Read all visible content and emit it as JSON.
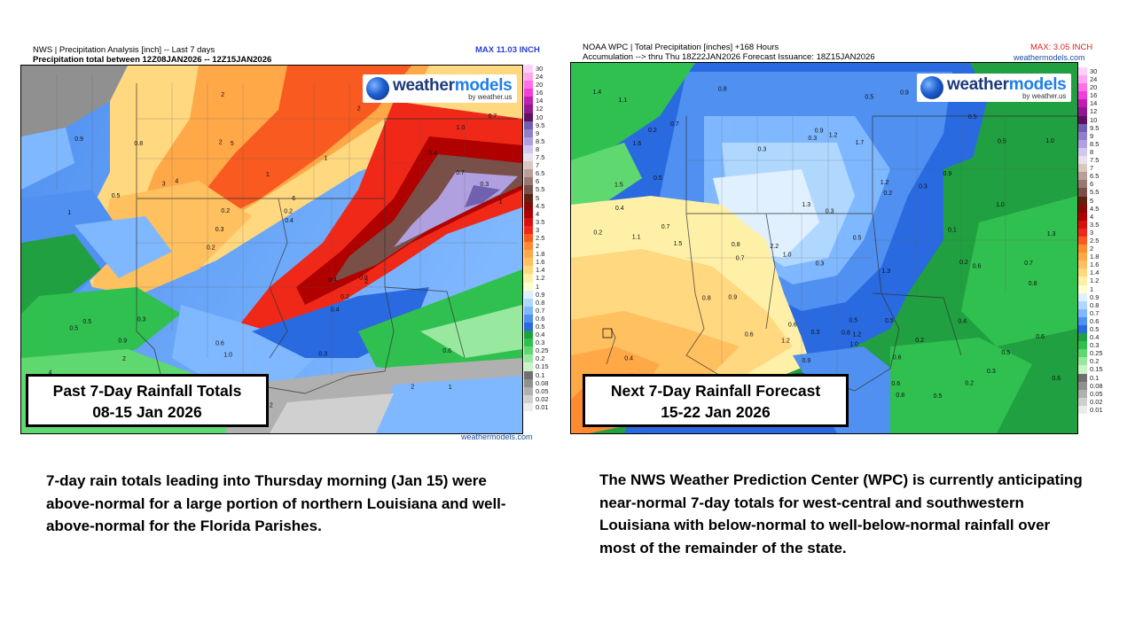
{
  "left_panel": {
    "header_line1": "NWS | Precipitation Analysis [inch] -- Last 7 days",
    "header_line2": "Precipitation total between 12Z08JAN2026 -- 12Z15JAN2026",
    "max_label": "MAX 11.03 INCH",
    "max_color": "#2a3fd8",
    "logo_main_a": "weather",
    "logo_main_b": "models",
    "logo_sub": "by weather.us",
    "source": "weathermodels.com",
    "caption_line1": "Past 7-Day Rainfall Totals",
    "caption_line2": "08-15 Jan 2026"
  },
  "right_panel": {
    "header_line1": "NOAA WPC | Total Precipitation [inches] +168 Hours",
    "header_line2": "Accumulation --> thru Thu 18Z22JAN2026   Forecast Issuance: 18Z15JAN2026",
    "max_label": "MAX: 3.05 INCH",
    "max_color": "#e02020",
    "source_top": "weathermodels.com",
    "logo_main_a": "weather",
    "logo_main_b": "models",
    "logo_sub": "by weather.us",
    "caption_line1": "Next 7-Day Rainfall Forecast",
    "caption_line2": "15-22 Jan 2026"
  },
  "legend": [
    {
      "label": "30",
      "color": "#ffd0f8"
    },
    {
      "label": "24",
      "color": "#ffa8f0"
    },
    {
      "label": "20",
      "color": "#ff70e8"
    },
    {
      "label": "16",
      "color": "#f040d8"
    },
    {
      "label": "14",
      "color": "#c020b0"
    },
    {
      "label": "12",
      "color": "#901890"
    },
    {
      "label": "10",
      "color": "#601060"
    },
    {
      "label": "9.5",
      "color": "#7060b0"
    },
    {
      "label": "9",
      "color": "#9080c8"
    },
    {
      "label": "8.5",
      "color": "#b0a0e0"
    },
    {
      "label": "8",
      "color": "#d0c8f0"
    },
    {
      "label": "7.5",
      "color": "#e8e0f0"
    },
    {
      "label": "7",
      "color": "#d8c8c0"
    },
    {
      "label": "6.5",
      "color": "#b8a098"
    },
    {
      "label": "6",
      "color": "#987870"
    },
    {
      "label": "5.5",
      "color": "#785048"
    },
    {
      "label": "5",
      "color": "#602010"
    },
    {
      "label": "4.5",
      "color": "#8a0808"
    },
    {
      "label": "4",
      "color": "#b00000"
    },
    {
      "label": "3.5",
      "color": "#d81010"
    },
    {
      "label": "3",
      "color": "#f02818"
    },
    {
      "label": "2.5",
      "color": "#f85a20"
    },
    {
      "label": "2",
      "color": "#ff8a30"
    },
    {
      "label": "1.8",
      "color": "#ffa848"
    },
    {
      "label": "1.6",
      "color": "#ffc060"
    },
    {
      "label": "1.4",
      "color": "#ffd880"
    },
    {
      "label": "1.2",
      "color": "#fff0a8"
    },
    {
      "label": "1",
      "color": "#ffffd0"
    },
    {
      "label": "0.9",
      "color": "#e0f0ff"
    },
    {
      "label": "0.8",
      "color": "#b0d8ff"
    },
    {
      "label": "0.7",
      "color": "#80b8ff"
    },
    {
      "label": "0.6",
      "color": "#4f90f0"
    },
    {
      "label": "0.5",
      "color": "#2a6ae0"
    },
    {
      "label": "0.4",
      "color": "#20a040"
    },
    {
      "label": "0.3",
      "color": "#30c050"
    },
    {
      "label": "0.25",
      "color": "#60d870"
    },
    {
      "label": "0.2",
      "color": "#98e8a0"
    },
    {
      "label": "0.15",
      "color": "#c8f4c8"
    },
    {
      "label": "0.1",
      "color": "#707070"
    },
    {
      "label": "0.08",
      "color": "#909090"
    },
    {
      "label": "0.05",
      "color": "#b0b0b0"
    },
    {
      "label": "0.02",
      "color": "#d0d0d0"
    },
    {
      "label": "0.01",
      "color": "#ececec"
    }
  ],
  "left_map_values": [
    "1",
    "1",
    "1.0",
    "0.2",
    "1",
    "2",
    "2",
    "1",
    "0.5",
    "4",
    "4",
    "2",
    "5",
    "6",
    "2",
    "0.9",
    "2",
    "1",
    "0.4",
    "0.7",
    "0.3",
    "0.6",
    "0.2",
    "0.8",
    "2",
    "0.3",
    "2",
    "0.6",
    "0.9",
    "2",
    "3",
    "0.5",
    "0.4",
    "0.4",
    "0.3",
    "0.2",
    "0.7",
    "1.0",
    "0.4",
    "0.5",
    "0.4",
    "0.7",
    "0.2",
    "0.3",
    "0.9",
    "3",
    "2"
  ],
  "right_map_values": [
    "0.5",
    "0.6",
    "0.5",
    "0.5",
    "0.2",
    "0.3",
    "0.5",
    "0.6",
    "0.7",
    "0.6",
    "0.7",
    "0.8",
    "0.9",
    "0.8",
    "0.6",
    "0.4",
    "0.3",
    "0.5",
    "0.6",
    "0.8",
    "1.0",
    "0.8",
    "0.9",
    "1.1",
    "1.2",
    "1.0",
    "0.9",
    "0.8",
    "0.7",
    "1.0",
    "1.2",
    "1.3",
    "1.2",
    "1.3",
    "1.5",
    "1.4",
    "1.3",
    "1.7",
    "1.5",
    "2.2",
    "1.7",
    "1.1",
    "0.9",
    "1.0",
    "0.9",
    "0.7",
    "0.5",
    "0.3",
    "0.2",
    "0.4",
    "0.3",
    "0.2",
    "0.5",
    "0.6",
    "0.8",
    "0.7",
    "0.5",
    "0.4",
    "0.3",
    "0.2",
    "0.1",
    "0.2",
    "1.6",
    "1.2",
    "0.5",
    "0.4",
    "0.3",
    "0.3",
    "0.2",
    "0.6"
  ],
  "body": {
    "left_text": "7-day rain totals leading into Thursday morning (Jan 15) were above-normal for a large portion of northern Louisiana and well-above-normal for the Florida Parishes.",
    "right_text": "The NWS Weather Prediction Center (WPC) is currently anticipating near-normal 7-day totals for west-central and southwestern Louisiana with below-normal to well-below-normal rainfall over most of the remainder of the state."
  }
}
